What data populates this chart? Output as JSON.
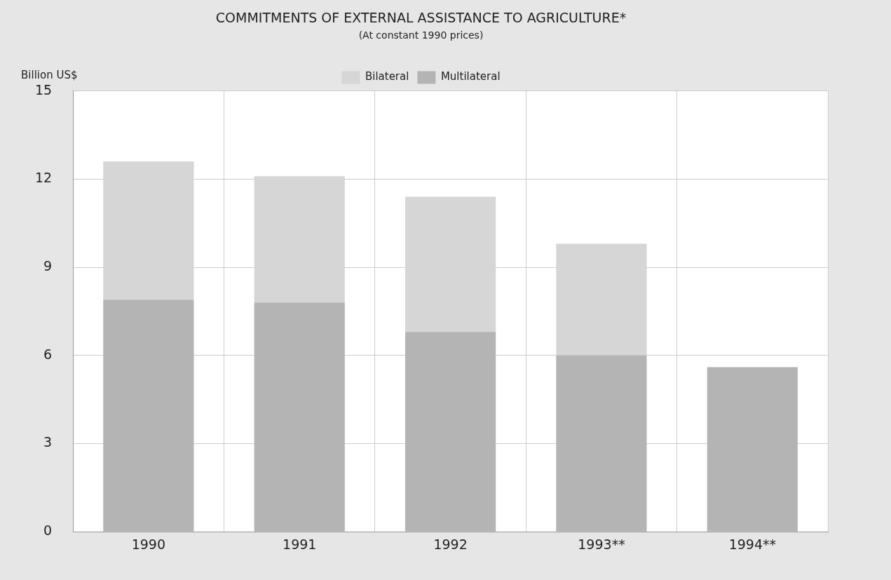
{
  "chart_data": {
    "type": "bar",
    "title": "COMMITMENTS OF EXTERNAL ASSISTANCE TO AGRICULTURE*",
    "subtitle": "(At constant 1990 prices)",
    "ylabel": "Billion US$",
    "categories": [
      "1990",
      "1991",
      "1992",
      "1993**",
      "1994**"
    ],
    "series": [
      {
        "name": "Multilateral",
        "color": "#b4b4b4",
        "values": [
          7.9,
          7.8,
          6.8,
          6.0,
          5.6
        ]
      },
      {
        "name": "Bilateral",
        "color": "#d6d6d6",
        "values": [
          4.7,
          4.3,
          4.6,
          3.8,
          null
        ]
      }
    ],
    "stacked": true,
    "ylim": [
      0,
      15
    ],
    "yticks": [
      0,
      3,
      6,
      9,
      12,
      15
    ],
    "grid": true,
    "legend": "top"
  }
}
